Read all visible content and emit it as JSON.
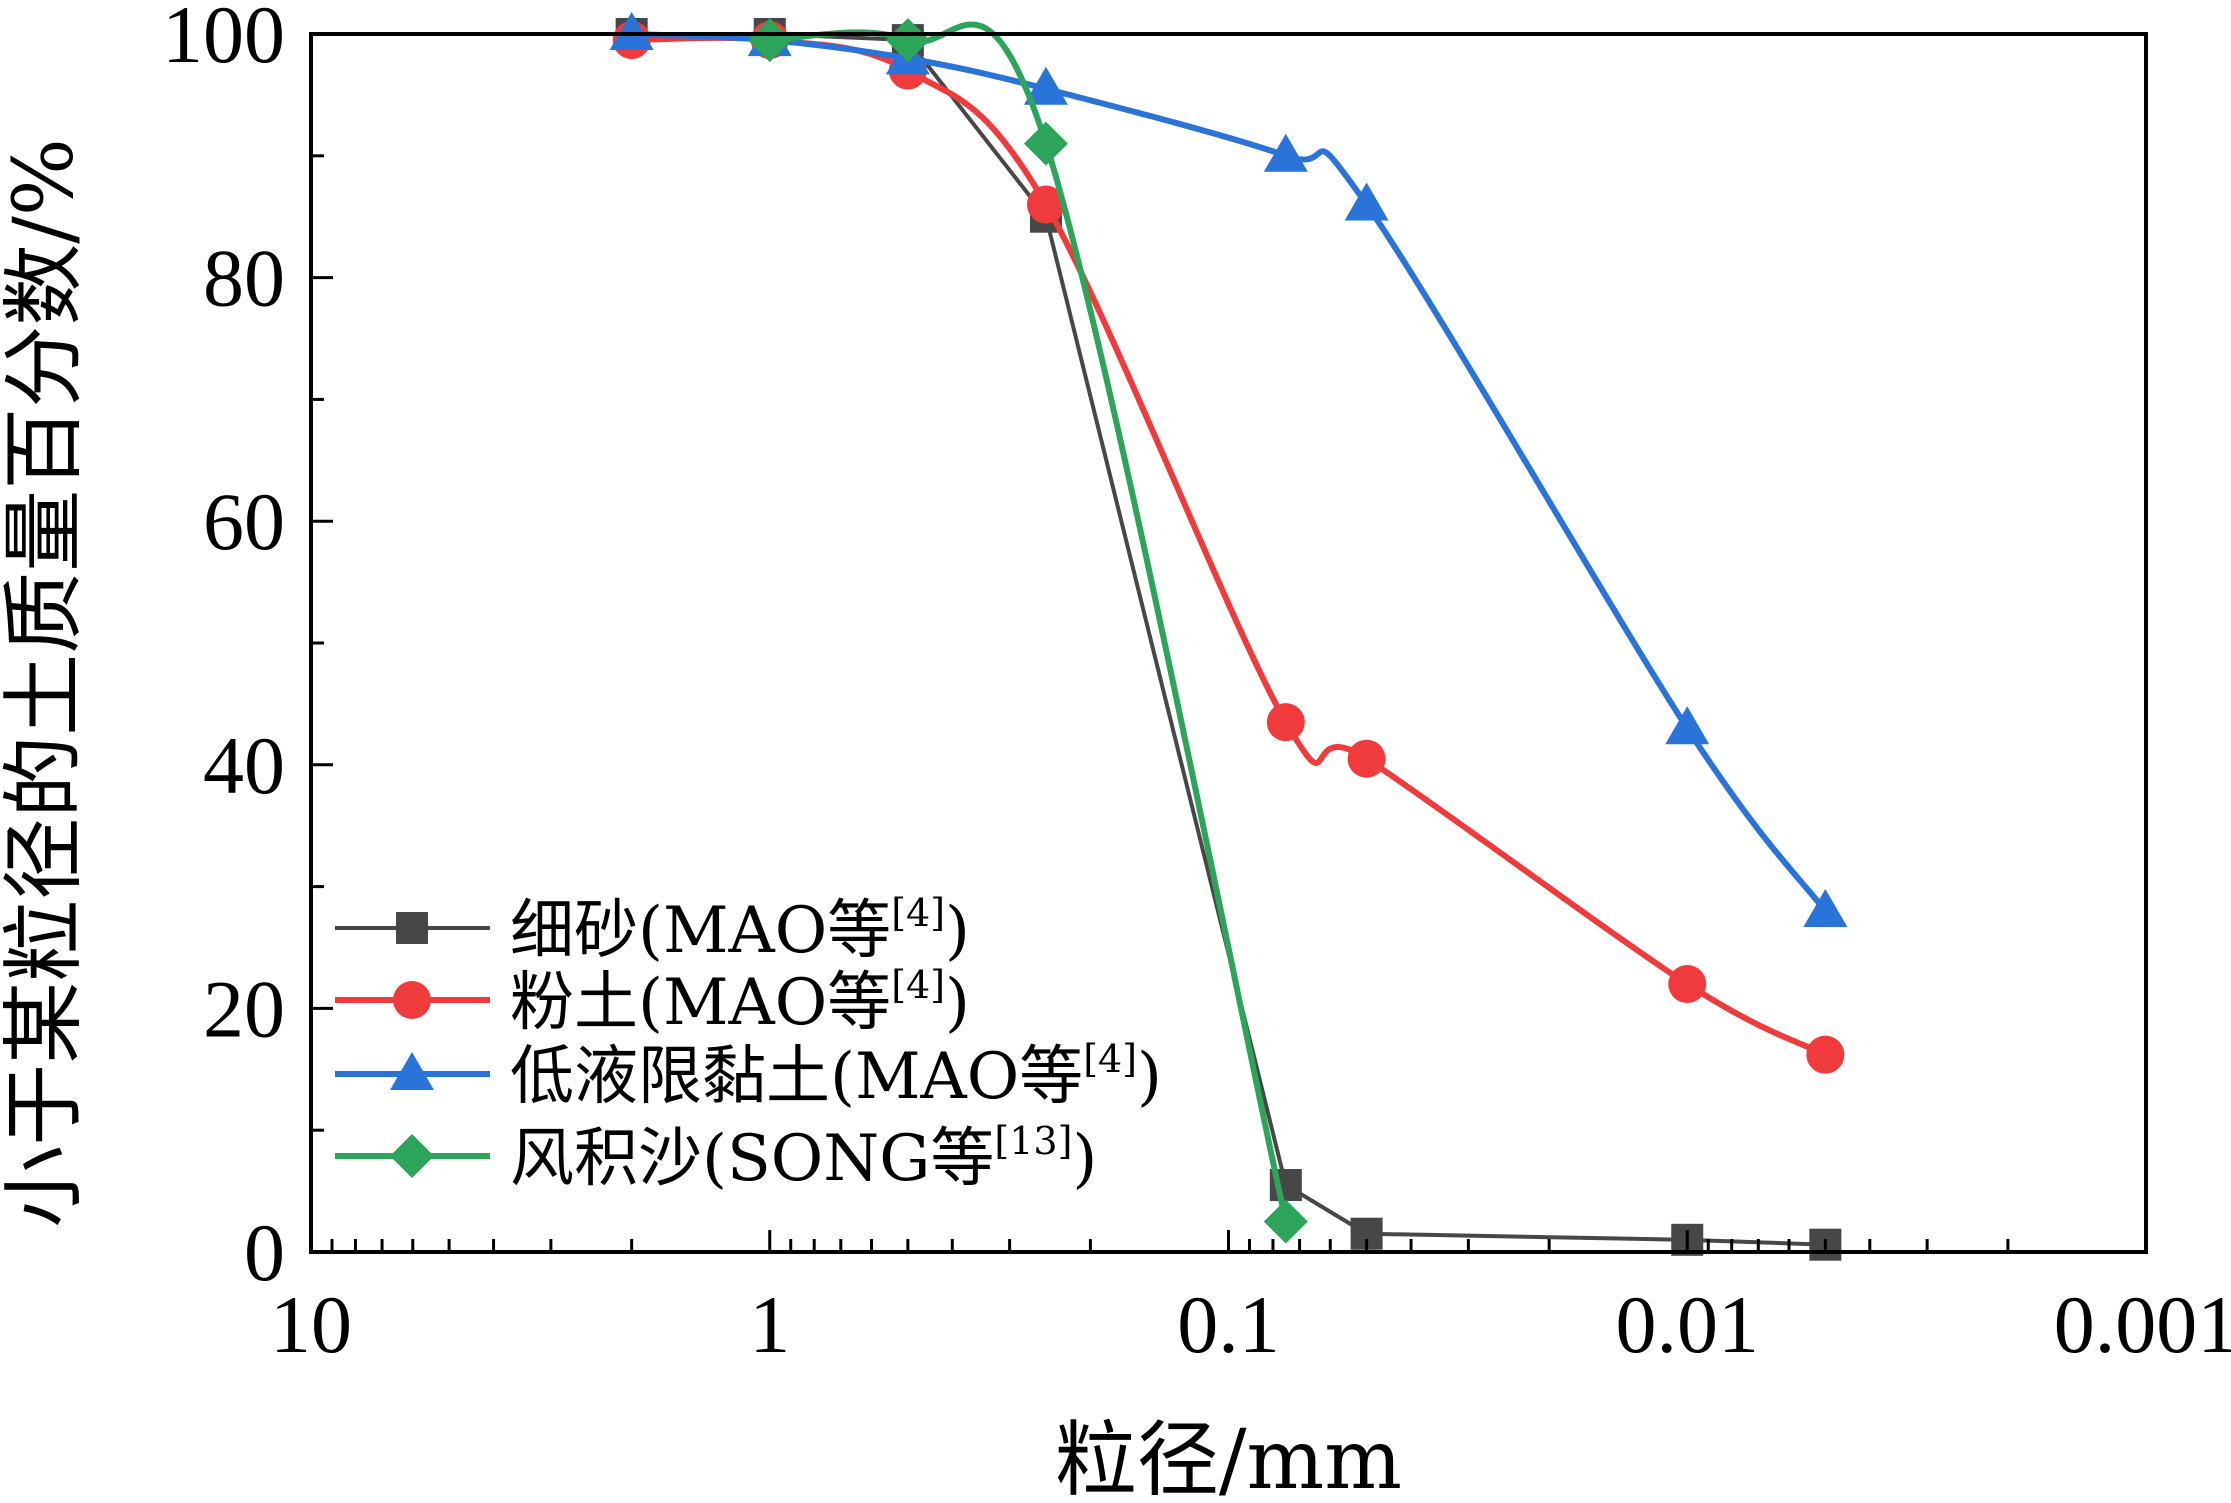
{
  "chart_data": {
    "type": "line",
    "title": "",
    "xlabel": "粒径/mm",
    "ylabel": "小于某粒径的土质量百分数/%",
    "x_scale": "log",
    "x_reversed": true,
    "xlim": [
      10,
      0.001
    ],
    "ylim": [
      0,
      100
    ],
    "x_ticks": [
      10,
      1,
      0.1,
      0.01,
      0.001
    ],
    "x_tick_labels": [
      "10",
      "1",
      "0.1",
      "0.01",
      "0.001"
    ],
    "y_ticks": [
      0,
      20,
      40,
      60,
      80,
      100
    ],
    "y_tick_labels": [
      "0",
      "20",
      "40",
      "60",
      "80",
      "100"
    ],
    "grid": false,
    "legend_position": "bottom-left",
    "series": [
      {
        "name": "细砂(MAO等",
        "ref": "[4]",
        "suffix": ")",
        "color": "#474747",
        "marker": "square",
        "smooth": false,
        "points": [
          {
            "x": 2,
            "y": 100
          },
          {
            "x": 1,
            "y": 100
          },
          {
            "x": 0.5,
            "y": 99.5
          },
          {
            "x": 0.25,
            "y": 85
          },
          {
            "x": 0.075,
            "y": 5.5
          },
          {
            "x": 0.05,
            "y": 1.5
          },
          {
            "x": 0.01,
            "y": 1
          },
          {
            "x": 0.005,
            "y": 0.6
          }
        ]
      },
      {
        "name": "粉土(MAO等",
        "ref": "[4]",
        "suffix": ")",
        "color": "#ef3b3b",
        "marker": "circle",
        "smooth": true,
        "points": [
          {
            "x": 2,
            "y": 99.5
          },
          {
            "x": 1,
            "y": 99.5
          },
          {
            "x": 0.5,
            "y": 97
          },
          {
            "x": 0.25,
            "y": 86
          },
          {
            "x": 0.075,
            "y": 43.5
          },
          {
            "x": 0.05,
            "y": 40.5
          },
          {
            "x": 0.01,
            "y": 22
          },
          {
            "x": 0.005,
            "y": 16.2
          }
        ]
      },
      {
        "name": "低液限黏土(MAO等",
        "ref": "[4]",
        "suffix": ")",
        "color": "#2a73d8",
        "marker": "triangle",
        "smooth": true,
        "points": [
          {
            "x": 2,
            "y": 100
          },
          {
            "x": 1,
            "y": 99.5
          },
          {
            "x": 0.5,
            "y": 98
          },
          {
            "x": 0.25,
            "y": 95.5
          },
          {
            "x": 0.075,
            "y": 90
          },
          {
            "x": 0.05,
            "y": 86
          },
          {
            "x": 0.01,
            "y": 43
          },
          {
            "x": 0.005,
            "y": 28
          }
        ]
      },
      {
        "name": "风积沙(SONG等",
        "ref": "[13]",
        "suffix": ")",
        "color": "#2ca55a",
        "marker": "diamond",
        "smooth": true,
        "points": [
          {
            "x": 1,
            "y": 99.5
          },
          {
            "x": 0.5,
            "y": 99.5
          },
          {
            "x": 0.25,
            "y": 91
          },
          {
            "x": 0.075,
            "y": 2.5
          }
        ]
      }
    ]
  }
}
